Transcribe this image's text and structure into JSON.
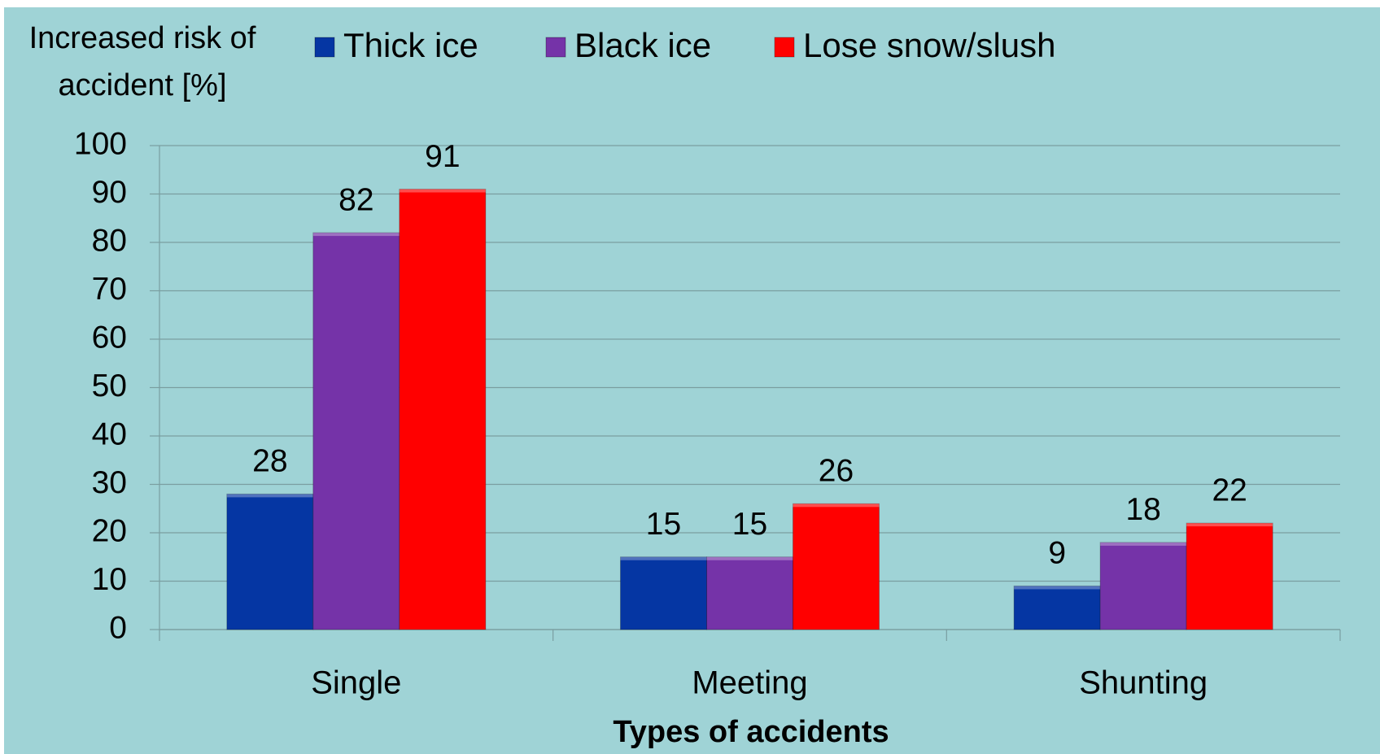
{
  "chart_data": {
    "type": "bar",
    "ylabel": "Increased risk of accident [%]",
    "xlabel": "Types of accidents",
    "categories": [
      "Single",
      "Meeting",
      "Shunting"
    ],
    "series": [
      {
        "name": "Thick ice",
        "color": "#0536a3",
        "values": [
          28,
          15,
          9
        ]
      },
      {
        "name": "Black ice",
        "color": "#7533a8",
        "values": [
          82,
          15,
          18
        ]
      },
      {
        "name": "Lose snow/slush",
        "color": "#ff0000",
        "values": [
          91,
          26,
          22
        ]
      }
    ],
    "ylim": [
      0,
      100
    ],
    "yticks": [
      0,
      10,
      20,
      30,
      40,
      50,
      60,
      70,
      80,
      90,
      100
    ],
    "grid": true,
    "legend": "top"
  }
}
